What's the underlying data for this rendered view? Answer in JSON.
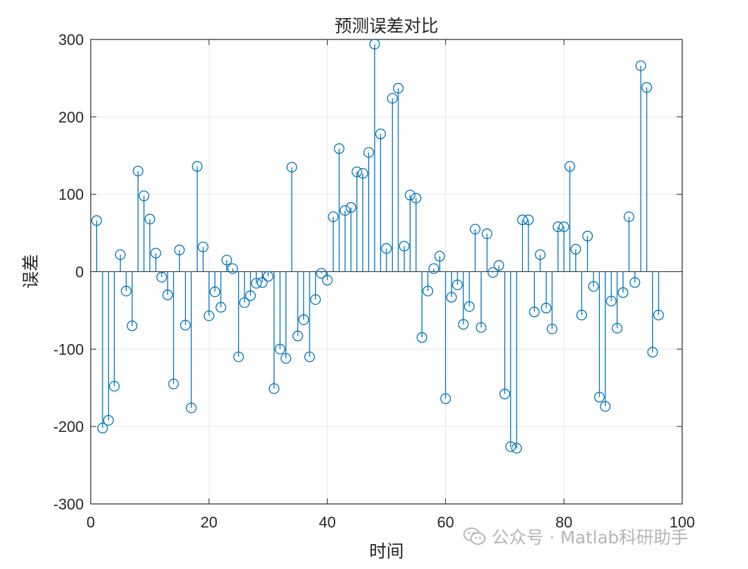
{
  "chart_data": {
    "type": "stem",
    "title": "预测误差对比",
    "xlabel": "时间",
    "ylabel": "误差",
    "xlim": [
      0,
      100
    ],
    "ylim": [
      -300,
      300
    ],
    "xticks": [
      0,
      20,
      40,
      60,
      80,
      100
    ],
    "yticks": [
      -300,
      -200,
      -100,
      0,
      100,
      200,
      300
    ],
    "xtick_labels": [
      "0",
      "20",
      "40",
      "60",
      "80",
      "100"
    ],
    "ytick_labels": [
      "-300",
      "-200",
      "-100",
      "0",
      "100",
      "200",
      "300"
    ],
    "grid": true,
    "box": true,
    "color": "#0072BD",
    "x": [
      1,
      2,
      3,
      4,
      5,
      6,
      7,
      8,
      9,
      10,
      11,
      12,
      13,
      14,
      15,
      16,
      17,
      18,
      19,
      20,
      21,
      22,
      23,
      24,
      25,
      26,
      27,
      28,
      29,
      30,
      31,
      32,
      33,
      34,
      35,
      36,
      37,
      38,
      39,
      40,
      41,
      42,
      43,
      44,
      45,
      46,
      47,
      48,
      49,
      50,
      51,
      52,
      53,
      54,
      55,
      56,
      57,
      58,
      59,
      60,
      61,
      62,
      63,
      64,
      65,
      66,
      67,
      68,
      69,
      70,
      71,
      72,
      73,
      74,
      75,
      76,
      77,
      78,
      79,
      80,
      81,
      82,
      83,
      84,
      85,
      86,
      87,
      88,
      89,
      90,
      91,
      92,
      93,
      94,
      95,
      96
    ],
    "values": [
      66,
      -202,
      -192,
      -148,
      22,
      -25,
      -70,
      130,
      98,
      68,
      24,
      -7,
      -30,
      -145,
      28,
      -69,
      -176,
      136,
      32,
      -57,
      -26,
      -46,
      15,
      4,
      -110,
      -40,
      -31,
      -15,
      -14,
      -6,
      -151,
      -100,
      -112,
      135,
      -83,
      -62,
      -110,
      -36,
      -2,
      -11,
      71,
      159,
      79,
      83,
      129,
      127,
      154,
      294,
      178,
      30,
      224,
      237,
      33,
      99,
      95,
      -85,
      -25,
      4,
      20,
      -164,
      -33,
      -17,
      -68,
      -45,
      55,
      -72,
      49,
      -1,
      8,
      -158,
      -226,
      -228,
      67,
      67,
      -52,
      22,
      -47,
      -74,
      58,
      58,
      136,
      29,
      -56,
      46,
      -19,
      -162,
      -174,
      -38,
      -73,
      -27,
      71,
      -14,
      266,
      238,
      -104,
      -56
    ]
  },
  "watermark": {
    "text": "公众号 · Matlab科研助手",
    "icon": "wechat-icon"
  }
}
